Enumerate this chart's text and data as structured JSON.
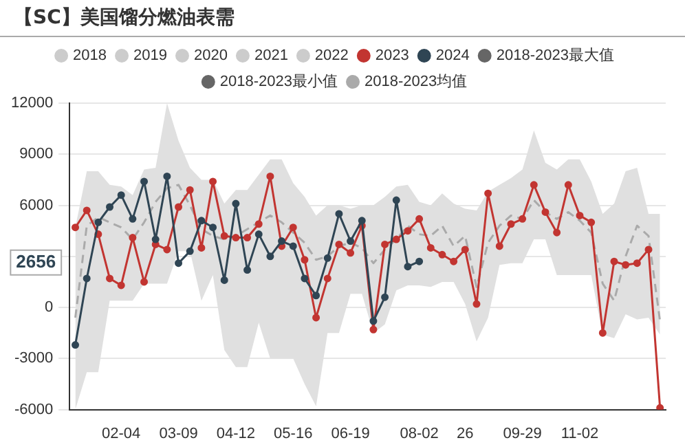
{
  "chart_data": {
    "type": "line",
    "title": "【SC】美国馏分燃油表需",
    "categories": [
      null,
      null,
      null,
      null,
      "02-04",
      null,
      null,
      null,
      null,
      "03-09",
      null,
      null,
      null,
      null,
      "04-12",
      null,
      null,
      null,
      null,
      "05-16",
      null,
      null,
      null,
      null,
      "06-19",
      null,
      null,
      null,
      null,
      null,
      "08-02",
      null,
      null,
      null,
      "26",
      null,
      null,
      null,
      null,
      "09-29",
      null,
      null,
      null,
      null,
      "11-02",
      null,
      null,
      null,
      null,
      null,
      null,
      null
    ],
    "series": [
      {
        "name": "2018",
        "color": "#cccccc",
        "values": [
          null,
          null,
          null,
          null,
          null,
          null,
          null,
          null,
          null,
          null,
          null,
          null,
          null,
          null,
          null,
          null,
          null,
          null,
          null,
          null,
          null,
          null,
          null,
          null,
          null,
          null,
          null,
          null,
          null,
          null,
          null,
          null,
          null,
          null,
          null,
          null,
          null,
          null,
          null,
          null,
          null,
          null,
          null,
          null,
          null,
          null,
          null,
          null,
          null,
          null,
          null,
          null
        ]
      },
      {
        "name": "2019",
        "color": "#cccccc",
        "values": [
          null,
          null,
          null,
          null,
          null,
          null,
          null,
          null,
          null,
          null,
          null,
          null,
          null,
          null,
          null,
          null,
          null,
          null,
          null,
          null,
          null,
          null,
          null,
          null,
          null,
          null,
          null,
          null,
          null,
          null,
          null,
          null,
          null,
          null,
          null,
          null,
          null,
          null,
          null,
          null,
          null,
          null,
          null,
          null,
          null,
          null,
          null,
          null,
          null,
          null,
          null,
          null
        ]
      },
      {
        "name": "2020",
        "color": "#cccccc",
        "values": [
          null,
          null,
          null,
          null,
          null,
          null,
          null,
          null,
          null,
          null,
          null,
          null,
          null,
          null,
          null,
          null,
          null,
          null,
          null,
          null,
          null,
          null,
          null,
          null,
          null,
          null,
          null,
          null,
          null,
          null,
          null,
          null,
          null,
          null,
          null,
          null,
          null,
          null,
          null,
          null,
          null,
          null,
          null,
          null,
          null,
          null,
          null,
          null,
          null,
          null,
          null,
          null
        ]
      },
      {
        "name": "2021",
        "color": "#cccccc",
        "values": [
          null,
          null,
          null,
          null,
          null,
          null,
          null,
          null,
          null,
          null,
          null,
          null,
          null,
          null,
          null,
          null,
          null,
          null,
          null,
          null,
          null,
          null,
          null,
          null,
          null,
          null,
          null,
          null,
          null,
          null,
          null,
          null,
          null,
          null,
          null,
          null,
          null,
          null,
          null,
          null,
          null,
          null,
          null,
          null,
          null,
          null,
          null,
          null,
          null,
          null,
          null,
          null
        ]
      },
      {
        "name": "2022",
        "color": "#cccccc",
        "values": [
          null,
          null,
          null,
          null,
          null,
          null,
          null,
          null,
          null,
          null,
          null,
          null,
          null,
          null,
          null,
          null,
          null,
          null,
          null,
          null,
          null,
          null,
          null,
          null,
          null,
          null,
          null,
          null,
          null,
          null,
          null,
          null,
          null,
          null,
          null,
          null,
          null,
          null,
          null,
          null,
          null,
          null,
          null,
          null,
          null,
          null,
          null,
          null,
          null,
          null,
          null,
          null
        ]
      },
      {
        "name": "2023",
        "color": "#c23531",
        "values": [
          4700,
          5700,
          4300,
          1700,
          1300,
          4100,
          1500,
          3700,
          3400,
          5900,
          6900,
          3500,
          7400,
          4200,
          4100,
          4100,
          4900,
          7700,
          3600,
          4700,
          2800,
          -600,
          1700,
          3700,
          3200,
          4800,
          -1300,
          3700,
          4000,
          4500,
          5200,
          3500,
          3100,
          2700,
          3400,
          200,
          6700,
          3600,
          4900,
          5200,
          7200,
          5600,
          4400,
          7200,
          5400,
          5000,
          -1500,
          2700,
          2500,
          2600,
          3400,
          -5900
        ]
      },
      {
        "name": "2024",
        "color": "#2f4554",
        "values": [
          -2200,
          1700,
          5000,
          5900,
          6600,
          5200,
          7400,
          4000,
          7700,
          2600,
          3300,
          5100,
          4700,
          1600,
          6100,
          2200,
          4300,
          3000,
          3900,
          3600,
          1700,
          700,
          2900,
          5500,
          3900,
          5100,
          -800,
          600,
          6300,
          2400,
          2700,
          null,
          null,
          null,
          null,
          null,
          null,
          null,
          null,
          null,
          null,
          null,
          null,
          null,
          null,
          null,
          null,
          null,
          null,
          null,
          null,
          null
        ]
      },
      {
        "name": "2018-2023最大值",
        "color": "#666666",
        "values": [
          null,
          null,
          null,
          null,
          null,
          null,
          null,
          null,
          null,
          null,
          null,
          null,
          null,
          null,
          null,
          null,
          null,
          null,
          null,
          null,
          null,
          null,
          null,
          null,
          null,
          null,
          null,
          null,
          null,
          null,
          null,
          null,
          null,
          null,
          null,
          null,
          null,
          null,
          null,
          null,
          null,
          null,
          null,
          null,
          null,
          null,
          null,
          null,
          null,
          null,
          null,
          null
        ]
      },
      {
        "name": "2018-2023最小值",
        "color": "#666666",
        "values": [
          null,
          null,
          null,
          null,
          null,
          null,
          null,
          null,
          null,
          null,
          null,
          null,
          null,
          null,
          null,
          null,
          null,
          null,
          null,
          null,
          null,
          null,
          null,
          null,
          null,
          null,
          null,
          null,
          null,
          null,
          null,
          null,
          null,
          null,
          null,
          null,
          null,
          null,
          null,
          null,
          null,
          null,
          null,
          null,
          null,
          null,
          null,
          null,
          null,
          null,
          null,
          null
        ]
      },
      {
        "name": "2018-2023均值",
        "type": "line",
        "color": "#aaaaaa",
        "line_style": "dashed",
        "marker": "none",
        "values": [
          -600,
          4800,
          5300,
          5000,
          4700,
          4000,
          5000,
          6200,
          7000,
          7200,
          6000,
          4600,
          4200,
          4000,
          4200,
          4600,
          5000,
          5400,
          5000,
          4400,
          3800,
          2800,
          3000,
          3600,
          3800,
          3500,
          2600,
          3400,
          4000,
          4800,
          4300,
          4200,
          4800,
          3600,
          4200,
          1200,
          3800,
          4800,
          5400,
          5200,
          6300,
          5600,
          5200,
          5600,
          5100,
          4400,
          1400,
          400,
          3000,
          4800,
          4200,
          -800
        ],
        "upper": [
          4700,
          8000,
          8000,
          7200,
          7100,
          6600,
          8100,
          8200,
          12000,
          9800,
          8200,
          7500,
          7500,
          6100,
          6900,
          6900,
          7800,
          8700,
          8700,
          7300,
          6500,
          5400,
          6000,
          6000,
          5800,
          6000,
          6000,
          6500,
          7100,
          7200,
          6200,
          6000,
          6700,
          6100,
          5800,
          5700,
          6800,
          7200,
          7600,
          8100,
          10400,
          8500,
          8100,
          8700,
          8700,
          7400,
          5500,
          6100,
          8000,
          8200,
          5500,
          5500
        ],
        "lower": [
          -6000,
          -3800,
          -3800,
          400,
          400,
          400,
          1400,
          1400,
          1400,
          3300,
          3300,
          400,
          1900,
          -2500,
          -3500,
          -3500,
          -900,
          -3000,
          -3000,
          -3000,
          -4500,
          -5800,
          -1500,
          -1500,
          800,
          800,
          -1500,
          -1000,
          1000,
          1300,
          1300,
          1200,
          1500,
          1500,
          200,
          -2000,
          -600,
          2500,
          2600,
          2600,
          4000,
          4000,
          1900,
          1900,
          1900,
          1900,
          -1600,
          -1800,
          -400,
          -700,
          -600,
          -1600
        ]
      }
    ],
    "ylim": [
      -6000,
      12000
    ],
    "yticks": [
      -6000,
      -3000,
      0,
      {
        "value": 3000,
        "label": null
      },
      6000,
      9000,
      12000
    ],
    "grid": "y",
    "legend": "top",
    "marker": "circle",
    "annotations": [
      "2656"
    ]
  }
}
